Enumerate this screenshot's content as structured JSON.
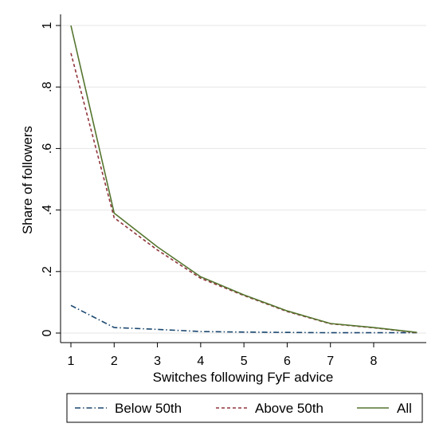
{
  "chart_data": {
    "type": "line",
    "title": "",
    "xlabel": "Switches following FyF advice",
    "ylabel": "Share of followers",
    "xlim": [
      1,
      9
    ],
    "ylim": [
      0,
      1
    ],
    "x_ticks": [
      1,
      2,
      3,
      4,
      5,
      6,
      7,
      8
    ],
    "x_tick_labels": [
      "1",
      "2",
      "3",
      "4",
      "5",
      "6",
      "7",
      "8"
    ],
    "y_ticks": [
      0,
      0.2,
      0.4,
      0.6,
      0.8,
      1
    ],
    "y_tick_labels": [
      "0",
      ".2",
      ".4",
      ".6",
      ".8",
      "1"
    ],
    "grid": true,
    "legend_position": "bottom",
    "x": [
      1,
      2,
      3,
      4,
      5,
      6,
      7,
      8,
      9
    ],
    "series": [
      {
        "name": "Below 50th",
        "style": "dash-dot",
        "color": "#1a476f",
        "values": [
          0.09,
          0.018,
          0.012,
          0.005,
          0.003,
          0.002,
          0.001,
          0.001,
          0.001
        ]
      },
      {
        "name": "Above 50th",
        "style": "dashed",
        "color": "#90353b",
        "values": [
          0.91,
          0.375,
          0.27,
          0.178,
          0.122,
          0.07,
          0.03,
          0.017,
          0.001
        ]
      },
      {
        "name": "All",
        "style": "solid",
        "color": "#55752f",
        "values": [
          1.0,
          0.39,
          0.28,
          0.183,
          0.124,
          0.072,
          0.031,
          0.018,
          0.002
        ]
      }
    ]
  }
}
